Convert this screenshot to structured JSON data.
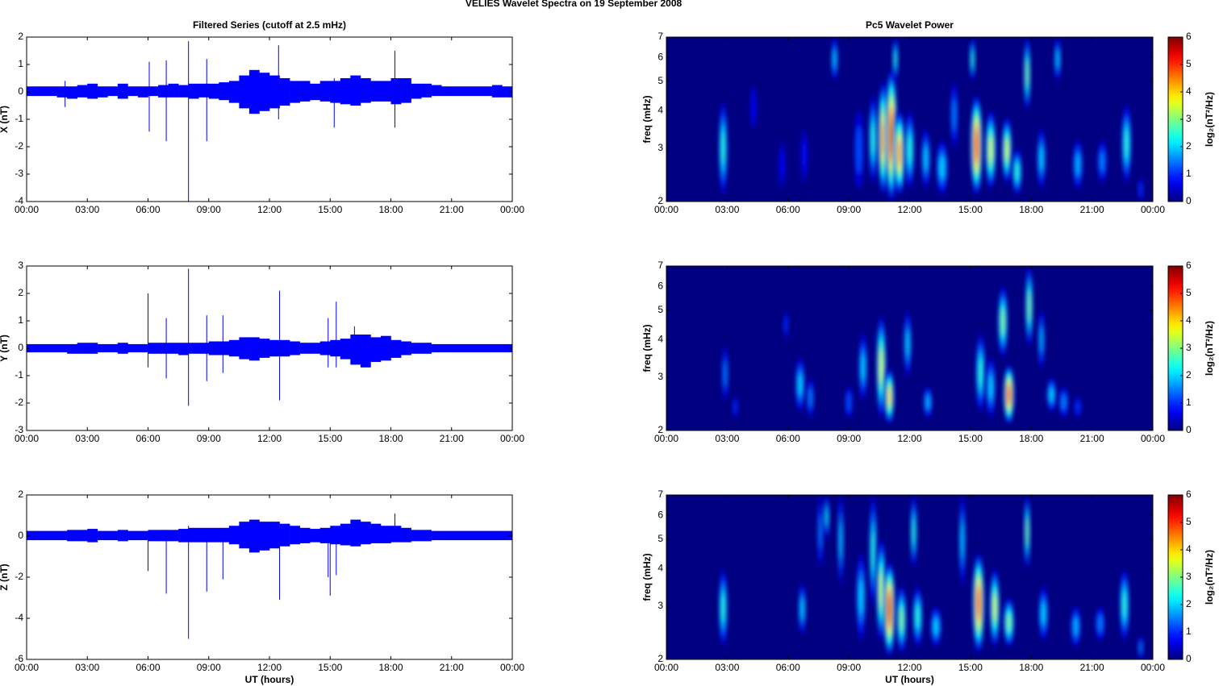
{
  "title": "VELIES Wavelet Spectra on 19 September 2008",
  "chart_data": [
    {
      "type": "timeseries",
      "title": "Filtered Series (cutoff at 2.5 mHz)",
      "ylabel": "X (nT)",
      "color": "#0000ff",
      "xlim": [
        0,
        24
      ],
      "xticks": [
        {
          "value": 0,
          "label": "00:00"
        },
        {
          "value": 3,
          "label": "03:00"
        },
        {
          "value": 6,
          "label": "06:00"
        },
        {
          "value": 9,
          "label": "09:00"
        },
        {
          "value": 12,
          "label": "12:00"
        },
        {
          "value": 15,
          "label": "15:00"
        },
        {
          "value": 18,
          "label": "18:00"
        },
        {
          "value": 21,
          "label": "21:00"
        },
        {
          "value": 24,
          "label": "00:00"
        }
      ],
      "ylim": [
        -4,
        2
      ],
      "yticks": [
        -4,
        -3,
        -2,
        -1,
        0,
        1,
        2
      ],
      "bins": [
        0,
        0.5,
        1,
        1.5,
        2,
        2.5,
        3,
        3.5,
        4,
        4.5,
        5,
        5.5,
        6,
        6.5,
        7,
        7.5,
        8,
        8.5,
        9,
        9.5,
        10,
        10.5,
        11,
        11.5,
        12,
        12.5,
        13,
        13.5,
        14,
        14.5,
        15,
        15.5,
        16,
        16.5,
        17,
        17.5,
        18,
        18.5,
        19,
        19.5,
        20,
        20.5,
        21,
        21.5,
        22,
        22.5,
        23,
        23.5,
        24
      ],
      "high": [
        0.2,
        0.2,
        0.2,
        0.2,
        0.2,
        0.25,
        0.3,
        0.2,
        0.2,
        0.3,
        0.2,
        0.2,
        0.2,
        0.25,
        0.3,
        0.25,
        0.3,
        0.3,
        0.3,
        0.35,
        0.4,
        0.6,
        0.8,
        0.7,
        0.6,
        0.5,
        0.4,
        0.4,
        0.3,
        0.4,
        0.4,
        0.5,
        0.6,
        0.5,
        0.4,
        0.4,
        0.5,
        0.5,
        0.3,
        0.3,
        0.25,
        0.2,
        0.2,
        0.2,
        0.2,
        0.2,
        0.25,
        0.2
      ],
      "low": [
        -0.15,
        -0.15,
        -0.15,
        -0.2,
        -0.25,
        -0.2,
        -0.25,
        -0.2,
        -0.15,
        -0.25,
        -0.15,
        -0.2,
        -0.15,
        -0.2,
        -0.2,
        -0.2,
        -0.25,
        -0.2,
        -0.25,
        -0.3,
        -0.4,
        -0.6,
        -0.8,
        -0.7,
        -0.6,
        -0.5,
        -0.4,
        -0.35,
        -0.3,
        -0.35,
        -0.4,
        -0.45,
        -0.5,
        -0.4,
        -0.35,
        -0.35,
        -0.45,
        -0.4,
        -0.25,
        -0.2,
        -0.15,
        -0.15,
        -0.15,
        -0.15,
        -0.15,
        -0.15,
        -0.2,
        -0.2
      ],
      "spikes": {
        "x": [
          1.9,
          6.06,
          6.9,
          8.0,
          8.9,
          12.45,
          15.2,
          18.2
        ],
        "low": [
          -0.55,
          -1.45,
          -1.8,
          -4,
          -1.8,
          -1.0,
          -1.3,
          -1.3
        ],
        "high": [
          0.4,
          1.1,
          1.15,
          1.85,
          1.2,
          1.7,
          0.5,
          1.5
        ]
      }
    },
    {
      "type": "spectrogram",
      "title": "Pc5 Wavelet Power",
      "ylabel": "freq (mHz)",
      "ylog": true,
      "colormap": "jet",
      "xlim": [
        0,
        24
      ],
      "xticks": [
        {
          "value": 0,
          "label": "00:00"
        },
        {
          "value": 3,
          "label": "03:00"
        },
        {
          "value": 6,
          "label": "06:00"
        },
        {
          "value": 9,
          "label": "09:00"
        },
        {
          "value": 12,
          "label": "12:00"
        },
        {
          "value": 15,
          "label": "15:00"
        },
        {
          "value": 18,
          "label": "18:00"
        },
        {
          "value": 21,
          "label": "21:00"
        },
        {
          "value": 24,
          "label": "00:00"
        }
      ],
      "ylim": [
        2,
        7
      ],
      "yticks": [
        2,
        3,
        4,
        5,
        6,
        7
      ],
      "clim": [
        0,
        6
      ],
      "cticks": [
        0,
        1,
        2,
        3,
        4,
        5,
        6
      ],
      "clabel": "log₂(nT²/Hz)",
      "events": {
        "t": [
          2.8,
          4.3,
          5.7,
          6.8,
          8.3,
          9.5,
          10.2,
          10.7,
          11.1,
          11.5,
          11.3,
          12.0,
          12.8,
          13.6,
          14.2,
          15.3,
          15.1,
          16.0,
          16.8,
          17.3,
          17.8,
          18.5,
          19.3,
          20.3,
          21.5,
          22.7,
          23.4
        ],
        "dt": [
          0.25,
          0.15,
          0.2,
          0.2,
          0.15,
          0.3,
          0.25,
          0.35,
          0.4,
          0.4,
          0.1,
          0.3,
          0.25,
          0.4,
          0.2,
          0.4,
          0.1,
          0.35,
          0.3,
          0.3,
          0.15,
          0.25,
          0.15,
          0.3,
          0.3,
          0.3,
          0.1
        ],
        "f0": [
          2.1,
          3.5,
          2.2,
          2.3,
          5,
          2.2,
          2.3,
          2.1,
          2,
          2.1,
          5,
          2.2,
          2.2,
          2.1,
          3,
          2.1,
          5,
          2.2,
          2.3,
          2.1,
          4,
          2.2,
          5,
          2.2,
          2.3,
          2.3,
          2
        ],
        "f1": [
          4.3,
          4.8,
          3.2,
          3.5,
          7,
          4,
          4.5,
          5,
          5.5,
          4,
          7,
          4,
          3.5,
          3.2,
          5,
          4.5,
          7,
          4,
          3.8,
          3,
          7,
          3.5,
          7,
          3.2,
          3.2,
          4.2,
          2.4
        ],
        "p": [
          2.5,
          0.6,
          0.7,
          0.8,
          2,
          1.2,
          2.5,
          4.5,
          5.5,
          4.5,
          2.5,
          2.5,
          2,
          2,
          1.5,
          5.2,
          2.5,
          3.5,
          3.5,
          2.5,
          3,
          2,
          2,
          1.8,
          1.5,
          2.5,
          1
        ]
      }
    },
    {
      "type": "timeseries",
      "ylabel": "Y (nT)",
      "color": "#0000ff",
      "xlim": [
        0,
        24
      ],
      "xticks": [
        {
          "value": 0,
          "label": "00:00"
        },
        {
          "value": 3,
          "label": "03:00"
        },
        {
          "value": 6,
          "label": "06:00"
        },
        {
          "value": 9,
          "label": "09:00"
        },
        {
          "value": 12,
          "label": "12:00"
        },
        {
          "value": 15,
          "label": "15:00"
        },
        {
          "value": 18,
          "label": "18:00"
        },
        {
          "value": 21,
          "label": "21:00"
        },
        {
          "value": 24,
          "label": "00:00"
        }
      ],
      "ylim": [
        -3,
        3
      ],
      "yticks": [
        -3,
        -2,
        -1,
        0,
        1,
        2,
        3
      ],
      "bins": [
        0,
        0.5,
        1,
        1.5,
        2,
        2.5,
        3,
        3.5,
        4,
        4.5,
        5,
        5.5,
        6,
        6.5,
        7,
        7.5,
        8,
        8.5,
        9,
        9.5,
        10,
        10.5,
        11,
        11.5,
        12,
        12.5,
        13,
        13.5,
        14,
        14.5,
        15,
        15.5,
        16,
        16.5,
        17,
        17.5,
        18,
        18.5,
        19,
        19.5,
        20,
        20.5,
        21,
        21.5,
        22,
        22.5,
        23,
        23.5,
        24
      ],
      "high": [
        0.15,
        0.15,
        0.15,
        0.15,
        0.15,
        0.2,
        0.2,
        0.15,
        0.15,
        0.2,
        0.15,
        0.15,
        0.2,
        0.2,
        0.2,
        0.2,
        0.2,
        0.2,
        0.25,
        0.25,
        0.3,
        0.4,
        0.4,
        0.35,
        0.3,
        0.3,
        0.25,
        0.2,
        0.2,
        0.25,
        0.3,
        0.35,
        0.5,
        0.5,
        0.4,
        0.45,
        0.3,
        0.25,
        0.2,
        0.2,
        0.15,
        0.15,
        0.15,
        0.15,
        0.15,
        0.15,
        0.15,
        0.15
      ],
      "low": [
        -0.15,
        -0.15,
        -0.15,
        -0.15,
        -0.2,
        -0.2,
        -0.2,
        -0.15,
        -0.15,
        -0.2,
        -0.15,
        -0.15,
        -0.2,
        -0.2,
        -0.2,
        -0.25,
        -0.2,
        -0.2,
        -0.25,
        -0.25,
        -0.3,
        -0.4,
        -0.45,
        -0.35,
        -0.3,
        -0.3,
        -0.25,
        -0.2,
        -0.2,
        -0.25,
        -0.3,
        -0.4,
        -0.6,
        -0.7,
        -0.5,
        -0.45,
        -0.35,
        -0.25,
        -0.2,
        -0.2,
        -0.15,
        -0.15,
        -0.15,
        -0.15,
        -0.15,
        -0.15,
        -0.15,
        -0.15
      ],
      "spikes": {
        "x": [
          6.0,
          6.9,
          8.0,
          8.9,
          9.7,
          12.5,
          14.9,
          15.3,
          16.2
        ],
        "low": [
          -0.7,
          -1.1,
          -2.1,
          -1.2,
          -0.9,
          -1.9,
          -0.7,
          -0.7,
          -0.2
        ],
        "high": [
          2.0,
          1.1,
          2.9,
          1.2,
          1.2,
          2.1,
          1.1,
          1.7,
          0.8
        ]
      }
    },
    {
      "type": "spectrogram",
      "ylabel": "freq (mHz)",
      "ylog": true,
      "colormap": "jet",
      "xlim": [
        0,
        24
      ],
      "xticks": [
        {
          "value": 0,
          "label": "00:00"
        },
        {
          "value": 3,
          "label": "03:00"
        },
        {
          "value": 6,
          "label": "06:00"
        },
        {
          "value": 9,
          "label": "09:00"
        },
        {
          "value": 12,
          "label": "12:00"
        },
        {
          "value": 15,
          "label": "15:00"
        },
        {
          "value": 18,
          "label": "18:00"
        },
        {
          "value": 21,
          "label": "21:00"
        },
        {
          "value": 24,
          "label": "00:00"
        }
      ],
      "ylim": [
        2,
        7
      ],
      "yticks": [
        2,
        3,
        4,
        5,
        6,
        7
      ],
      "clim": [
        0,
        6
      ],
      "cticks": [
        0,
        1,
        2,
        3,
        4,
        5,
        6
      ],
      "clabel": "log₂(nT²/Hz)",
      "events": {
        "t": [
          2.9,
          3.4,
          6.6,
          7.1,
          5.9,
          9.0,
          9.7,
          10.6,
          11.0,
          11.9,
          12.9,
          15.5,
          16.0,
          16.6,
          16.9,
          17.9,
          18.5,
          19.0,
          19.6,
          20.3
        ],
        "dt": [
          0.15,
          0.1,
          0.3,
          0.2,
          0.08,
          0.2,
          0.25,
          0.3,
          0.3,
          0.2,
          0.25,
          0.3,
          0.3,
          0.3,
          0.35,
          0.2,
          0.15,
          0.3,
          0.3,
          0.2
        ],
        "f0": [
          2.5,
          2.2,
          2.3,
          2.2,
          4,
          2.2,
          2.5,
          2.2,
          2.1,
          3,
          2.2,
          2.3,
          2.2,
          3.5,
          2.1,
          3.8,
          3.2,
          2.3,
          2.2,
          2.2
        ],
        "f1": [
          3.8,
          2.6,
          3.5,
          3,
          5,
          2.8,
          4.2,
          4.8,
          3.2,
          5,
          2.8,
          4.2,
          3.5,
          6,
          3.3,
          7,
          5,
          3,
          2.8,
          2.6
        ],
        "p": [
          1.5,
          1,
          2,
          1.5,
          1,
          1.2,
          2,
          3.5,
          4,
          2,
          1.8,
          2.5,
          2,
          3,
          5,
          3,
          1.8,
          2,
          1.5,
          1
        ]
      }
    },
    {
      "type": "timeseries",
      "ylabel": "Z (nT)",
      "xlabel": "UT (hours)",
      "color": "#0000ff",
      "xlim": [
        0,
        24
      ],
      "xticks": [
        {
          "value": 0,
          "label": "00:00"
        },
        {
          "value": 3,
          "label": "03:00"
        },
        {
          "value": 6,
          "label": "06:00"
        },
        {
          "value": 9,
          "label": "09:00"
        },
        {
          "value": 12,
          "label": "12:00"
        },
        {
          "value": 15,
          "label": "15:00"
        },
        {
          "value": 18,
          "label": "18:00"
        },
        {
          "value": 21,
          "label": "21:00"
        },
        {
          "value": 24,
          "label": "00:00"
        }
      ],
      "ylim": [
        -6,
        2
      ],
      "yticks": [
        -6,
        -4,
        -2,
        0,
        2
      ],
      "bins": [
        0,
        0.5,
        1,
        1.5,
        2,
        2.5,
        3,
        3.5,
        4,
        4.5,
        5,
        5.5,
        6,
        6.5,
        7,
        7.5,
        8,
        8.5,
        9,
        9.5,
        10,
        10.5,
        11,
        11.5,
        12,
        12.5,
        13,
        13.5,
        14,
        14.5,
        15,
        15.5,
        16,
        16.5,
        17,
        17.5,
        18,
        18.5,
        19,
        19.5,
        20,
        20.5,
        21,
        21.5,
        22,
        22.5,
        23,
        23.5,
        24
      ],
      "high": [
        0.25,
        0.25,
        0.25,
        0.25,
        0.3,
        0.3,
        0.35,
        0.25,
        0.25,
        0.3,
        0.25,
        0.25,
        0.3,
        0.3,
        0.3,
        0.35,
        0.4,
        0.4,
        0.4,
        0.4,
        0.5,
        0.7,
        0.8,
        0.7,
        0.7,
        0.6,
        0.5,
        0.4,
        0.35,
        0.4,
        0.5,
        0.6,
        0.8,
        0.7,
        0.6,
        0.5,
        0.5,
        0.4,
        0.3,
        0.3,
        0.25,
        0.25,
        0.25,
        0.25,
        0.25,
        0.25,
        0.25,
        0.25
      ],
      "low": [
        -0.2,
        -0.2,
        -0.2,
        -0.2,
        -0.25,
        -0.25,
        -0.3,
        -0.2,
        -0.2,
        -0.25,
        -0.2,
        -0.2,
        -0.25,
        -0.25,
        -0.25,
        -0.3,
        -0.3,
        -0.3,
        -0.3,
        -0.3,
        -0.4,
        -0.6,
        -0.8,
        -0.7,
        -0.6,
        -0.5,
        -0.4,
        -0.35,
        -0.3,
        -0.35,
        -0.4,
        -0.45,
        -0.5,
        -0.4,
        -0.35,
        -0.35,
        -0.3,
        -0.3,
        -0.25,
        -0.25,
        -0.2,
        -0.2,
        -0.2,
        -0.2,
        -0.2,
        -0.2,
        -0.2,
        -0.2
      ],
      "spikes": {
        "x": [
          6.0,
          6.9,
          8.0,
          8.9,
          9.7,
          12.5,
          14.9,
          15.0,
          15.3,
          18.2
        ],
        "low": [
          -1.7,
          -2.8,
          -5.0,
          -2.7,
          -2.1,
          -3.1,
          -2.0,
          -2.9,
          -1.9,
          -0.2
        ],
        "high": [
          0.2,
          0.3,
          0.5,
          0.3,
          0.2,
          0.3,
          0.2,
          0.2,
          0.2,
          1.1
        ]
      }
    },
    {
      "type": "spectrogram",
      "ylabel": "freq (mHz)",
      "xlabel": "UT (hours)",
      "ylog": true,
      "colormap": "jet",
      "xlim": [
        0,
        24
      ],
      "xticks": [
        {
          "value": 0,
          "label": "00:00"
        },
        {
          "value": 3,
          "label": "03:00"
        },
        {
          "value": 6,
          "label": "06:00"
        },
        {
          "value": 9,
          "label": "09:00"
        },
        {
          "value": 12,
          "label": "12:00"
        },
        {
          "value": 15,
          "label": "15:00"
        },
        {
          "value": 18,
          "label": "18:00"
        },
        {
          "value": 21,
          "label": "21:00"
        },
        {
          "value": 24,
          "label": "00:00"
        }
      ],
      "ylim": [
        2,
        7
      ],
      "yticks": [
        2,
        3,
        4,
        5,
        6,
        7
      ],
      "clim": [
        0,
        6
      ],
      "cticks": [
        0,
        1,
        2,
        3,
        4,
        5,
        6
      ],
      "clabel": "log₂(nT²/Hz)",
      "events": {
        "t": [
          2.8,
          6.7,
          7.6,
          7.9,
          8.6,
          9.6,
          10.2,
          10.6,
          11.0,
          11.6,
          12.2,
          12.4,
          13.3,
          14.6,
          15.4,
          16.2,
          16.9,
          17.8,
          18.6,
          20.2,
          21.4,
          22.6,
          23.4
        ],
        "dt": [
          0.25,
          0.2,
          0.12,
          0.1,
          0.12,
          0.3,
          0.2,
          0.3,
          0.4,
          0.3,
          0.15,
          0.3,
          0.35,
          0.15,
          0.4,
          0.3,
          0.35,
          0.12,
          0.3,
          0.3,
          0.3,
          0.3,
          0.1
        ],
        "f0": [
          2.2,
          2.4,
          4,
          5,
          3.5,
          2.3,
          3,
          2.3,
          2.05,
          2.1,
          4,
          2.2,
          2.2,
          3.5,
          2.1,
          2.2,
          2.2,
          4,
          2.3,
          2.2,
          2.3,
          2.3,
          2
        ],
        "f1": [
          4,
          3.6,
          7,
          7,
          7,
          4.5,
          7,
          5,
          4.2,
          3.5,
          7,
          3.5,
          3,
          7,
          4.5,
          4,
          3.2,
          7,
          3.5,
          3,
          3,
          4,
          2.4
        ],
        "p": [
          2.5,
          2,
          1.5,
          2.2,
          2,
          2,
          2.5,
          3.5,
          5.5,
          3,
          2.5,
          2.5,
          2,
          2,
          5,
          3.5,
          3,
          3,
          2,
          1.8,
          1.5,
          2.5,
          1.5
        ]
      }
    }
  ]
}
